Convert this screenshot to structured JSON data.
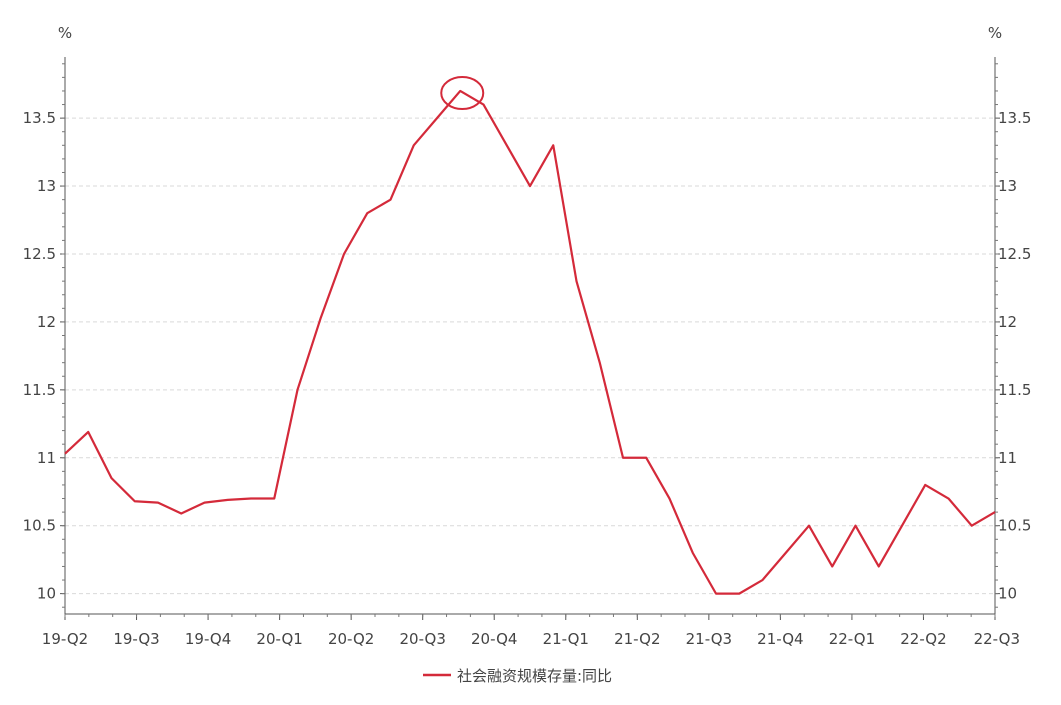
{
  "chart_data": {
    "type": "line",
    "title": "",
    "y_unit_left": "%",
    "y_unit_right": "%",
    "ylim": [
      9.85,
      13.95
    ],
    "y_ticks": [
      "10",
      "10.5",
      "11",
      "11.5",
      "12",
      "12.5",
      "13",
      "13.5"
    ],
    "x_tick_labels": [
      "19-Q2",
      "19-Q3",
      "19-Q4",
      "20-Q1",
      "20-Q2",
      "20-Q3",
      "20-Q4",
      "21-Q1",
      "21-Q2",
      "21-Q3",
      "21-Q4",
      "22-Q1",
      "22-Q2",
      "22-Q3"
    ],
    "grid": true,
    "legend_position": "bottom-center",
    "series": [
      {
        "name": "社会融资规模存量:同比",
        "color": "#d42a3a",
        "values": [
          11.03,
          11.19,
          10.85,
          10.68,
          10.67,
          10.59,
          10.67,
          10.69,
          10.7,
          10.7,
          11.5,
          12.03,
          12.5,
          12.8,
          12.9,
          13.3,
          13.5,
          13.7,
          13.6,
          13.3,
          13.0,
          13.3,
          12.3,
          11.7,
          11.0,
          11.0,
          10.7,
          10.3,
          10.0,
          10.0,
          10.1,
          10.3,
          10.5,
          10.2,
          10.5,
          10.2,
          10.5,
          10.8,
          10.7,
          10.5,
          10.6
        ]
      }
    ],
    "annotation": {
      "type": "circle",
      "point_index": 17,
      "color": "#d42a3a"
    }
  }
}
